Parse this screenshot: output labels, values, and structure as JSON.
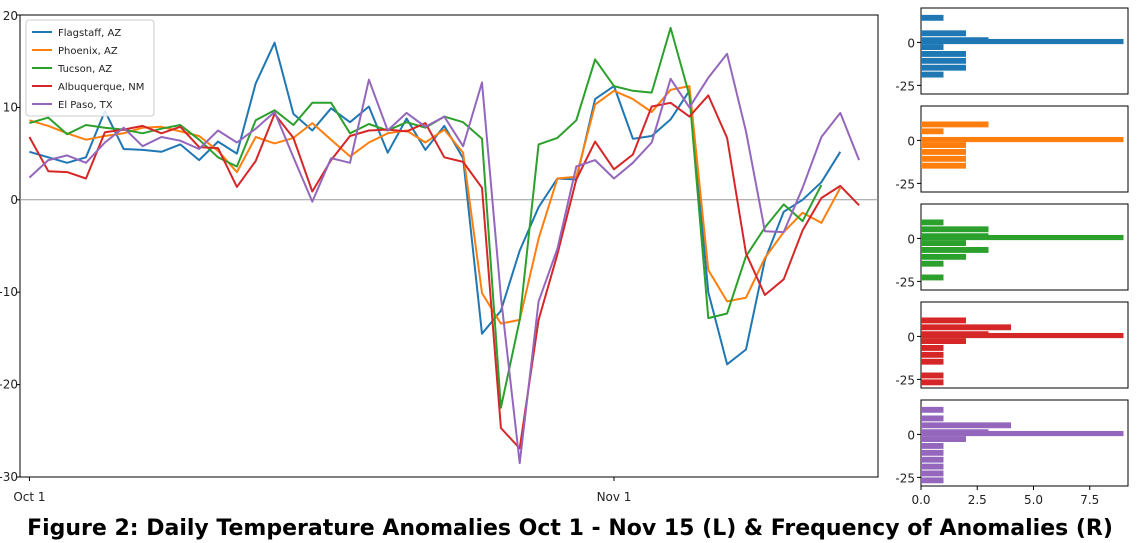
{
  "caption": "Figure 2: Daily Temperature Anomalies Oct 1 - Nov 15 (L) & Frequency of Anomalies (R)",
  "chart_data": [
    {
      "type": "line",
      "x_ticks": [
        {
          "x": 1,
          "label": "Oct 1"
        },
        {
          "x": 32,
          "label": "Nov 1"
        }
      ],
      "xlim": [
        0.5,
        46
      ],
      "ylim": [
        -30,
        20
      ],
      "y_ticks": [
        20,
        10,
        0,
        -10,
        -20,
        -30
      ],
      "reference_line_y": 0,
      "legend_position": "top-left",
      "series": [
        {
          "name": "Flagstaff, AZ",
          "color": "#1f77b4",
          "values": [
            5.2,
            4.6,
            4.0,
            4.6,
            9.6,
            5.5,
            5.4,
            5.2,
            6.0,
            4.3,
            6.3,
            5.0,
            12.6,
            17.0,
            9.3,
            7.5,
            9.9,
            8.4,
            10.1,
            5.1,
            8.8,
            5.4,
            8.0,
            4.5,
            -14.5,
            -12.0,
            -5.5,
            -0.8,
            2.3,
            2.2,
            10.9,
            12.3,
            6.6,
            6.9,
            8.7,
            11.8,
            -10.0,
            -17.8,
            -16.2,
            -6.5,
            -1.3,
            0.0,
            1.9,
            5.2
          ]
        },
        {
          "name": "Phoenix, AZ",
          "color": "#ff7f0e",
          "values": [
            8.6,
            8.0,
            7.2,
            6.5,
            6.9,
            7.2,
            7.8,
            7.9,
            7.4,
            6.9,
            5.3,
            3.0,
            6.8,
            6.1,
            6.7,
            8.3,
            6.5,
            4.7,
            6.2,
            7.2,
            7.5,
            6.2,
            7.6,
            5.1,
            -10.1,
            -13.4,
            -13.0,
            -4.2,
            2.3,
            2.5,
            10.3,
            11.8,
            10.9,
            9.5,
            11.9,
            12.3,
            -7.6,
            -11.0,
            -10.6,
            -6.3,
            -3.5,
            -1.4,
            -2.5,
            1.3
          ]
        },
        {
          "name": "Tucson, AZ",
          "color": "#2ca02c",
          "values": [
            8.3,
            8.9,
            7.1,
            8.1,
            7.8,
            7.6,
            7.2,
            7.7,
            8.1,
            6.5,
            4.6,
            3.6,
            8.6,
            9.7,
            8.1,
            10.5,
            10.5,
            7.2,
            8.2,
            7.5,
            8.4,
            7.8,
            9.0,
            8.4,
            6.6,
            -22.5,
            -13.0,
            6.0,
            6.7,
            8.6,
            15.2,
            12.3,
            11.8,
            11.6,
            18.6,
            11.3,
            -12.8,
            -12.3,
            -6.1,
            -3.0,
            -0.5,
            -2.3,
            1.6
          ]
        },
        {
          "name": "Albuquerque, NM",
          "color": "#d62728",
          "values": [
            6.8,
            3.1,
            3.0,
            2.3,
            7.3,
            7.6,
            8.0,
            7.2,
            7.9,
            5.7,
            5.6,
            1.4,
            4.2,
            9.3,
            6.7,
            0.9,
            4.3,
            6.9,
            7.5,
            7.6,
            7.4,
            8.3,
            4.6,
            4.1,
            1.3,
            -24.7,
            -26.9,
            -13.0,
            -5.9,
            2.2,
            6.3,
            3.3,
            4.9,
            10.1,
            10.5,
            9.0,
            11.3,
            6.7,
            -5.8,
            -10.3,
            -8.6,
            -3.3,
            0.2,
            1.5,
            -0.6
          ]
        },
        {
          "name": "El Paso, TX",
          "color": "#9467bd",
          "values": [
            2.4,
            4.3,
            4.8,
            4.0,
            6.2,
            7.8,
            5.8,
            6.8,
            6.4,
            5.5,
            7.5,
            6.2,
            7.7,
            9.5,
            4.6,
            -0.2,
            4.5,
            4.0,
            13.0,
            7.5,
            9.4,
            7.9,
            9.0,
            5.8,
            12.7,
            -10.5,
            -28.5,
            -11.0,
            -5.3,
            3.6,
            4.3,
            2.3,
            4.0,
            6.2,
            13.1,
            10.0,
            13.2,
            15.8,
            7.4,
            -3.4,
            -3.5,
            1.3,
            6.8,
            9.4,
            4.3
          ]
        }
      ]
    },
    {
      "type": "bar",
      "orientation": "horizontal",
      "panels": [
        {
          "color": "#1f77b4",
          "bins": [
            [
              14,
              1
            ],
            [
              9,
              0
            ],
            [
              5,
              2
            ],
            [
              1,
              3
            ],
            [
              -3,
              1
            ],
            [
              -7,
              2
            ],
            [
              -11,
              2
            ],
            [
              -15,
              2
            ],
            [
              -19,
              1
            ]
          ],
          "peak": [
            0,
            9
          ],
          "y_ticks": [
            0,
            -25
          ],
          "ylim": [
            -30,
            20
          ],
          "x_max": 9
        }
      ]
    }
  ]
}
